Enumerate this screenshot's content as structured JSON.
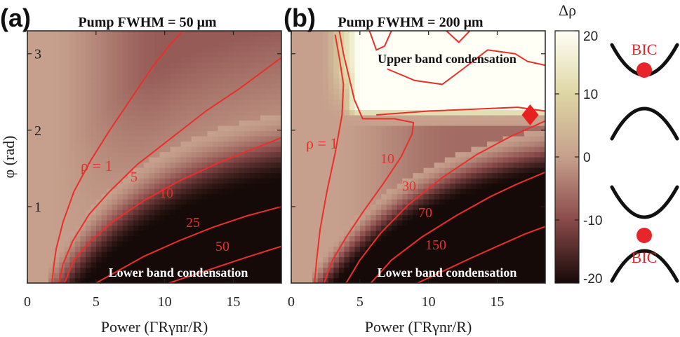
{
  "chart_data": [
    {
      "type": "heatmap",
      "panel_label": "(a)",
      "title": "Pump FWHM = 50 μm",
      "xlabel": "Power (ΓRγnr/R)",
      "ylabel": "φ (rad)",
      "xlim": [
        0,
        18.5
      ],
      "ylim": [
        0,
        3.3
      ],
      "xticks": [
        "0",
        "5",
        "10",
        "15"
      ],
      "yticks": [
        "1",
        "2",
        "3"
      ],
      "contours": [
        {
          "label": "ρ = 1",
          "level": 1,
          "points": [
            [
              1.8,
              0
            ],
            [
              1.9,
              0.2
            ],
            [
              2.1,
              0.45
            ],
            [
              2.6,
              0.8
            ],
            [
              3.4,
              1.2
            ],
            [
              4.6,
              1.6
            ],
            [
              6,
              2.0
            ],
            [
              7.5,
              2.4
            ],
            [
              9,
              2.8
            ],
            [
              10.3,
              3.1
            ],
            [
              11.3,
              3.3
            ]
          ]
        },
        {
          "label": "5",
          "level": 5,
          "points": [
            [
              2.3,
              0
            ],
            [
              2.6,
              0.25
            ],
            [
              3.3,
              0.55
            ],
            [
              4.5,
              0.9
            ],
            [
              6,
              1.2
            ],
            [
              8,
              1.55
            ],
            [
              10.5,
              1.9
            ],
            [
              13,
              2.25
            ],
            [
              15.5,
              2.55
            ],
            [
              18.5,
              2.95
            ]
          ]
        },
        {
          "label": "10",
          "level": 10,
          "points": [
            [
              2.7,
              0
            ],
            [
              3.4,
              0.3
            ],
            [
              4.6,
              0.55
            ],
            [
              6.2,
              0.8
            ],
            [
              8.5,
              1.08
            ],
            [
              11,
              1.33
            ],
            [
              14,
              1.58
            ],
            [
              16.5,
              1.76
            ],
            [
              18.5,
              1.9
            ]
          ]
        },
        {
          "label": "25",
          "level": 25,
          "points": [
            [
              5,
              0
            ],
            [
              6.5,
              0.15
            ],
            [
              8.5,
              0.35
            ],
            [
              11,
              0.55
            ],
            [
              13.5,
              0.73
            ],
            [
              16,
              0.88
            ],
            [
              18.5,
              1.0
            ]
          ]
        },
        {
          "label": "50",
          "level": 50,
          "points": [
            [
              10.3,
              0
            ],
            [
              12,
              0.1
            ],
            [
              14,
              0.22
            ],
            [
              16,
              0.34
            ],
            [
              18.5,
              0.48
            ]
          ]
        }
      ],
      "annotations": [
        "Lower band condensation"
      ]
    },
    {
      "type": "heatmap",
      "panel_label": "(b)",
      "title": "Pump FWHM = 200 μm",
      "xlabel": "Power (ΓRγnr/R)",
      "ylabel": "",
      "xlim": [
        0,
        18.5
      ],
      "ylim": [
        0,
        3.3
      ],
      "xticks": [
        "0",
        "5",
        "10",
        "15"
      ],
      "contours": [
        {
          "label": "ρ = 1",
          "level": 1,
          "points": [
            [
              1.7,
              0
            ],
            [
              1.85,
              0.3
            ],
            [
              2.1,
              0.7
            ],
            [
              2.6,
              1.2
            ],
            [
              3.2,
              1.7
            ],
            [
              3.7,
              2.2
            ],
            [
              3.8,
              2.6
            ],
            [
              3.5,
              2.95
            ],
            [
              3.2,
              3.25
            ]
          ]
        },
        {
          "label": "10",
          "level": 10,
          "points": [
            [
              2.4,
              0
            ],
            [
              3,
              0.3
            ],
            [
              4,
              0.6
            ],
            [
              5.3,
              0.95
            ],
            [
              6.7,
              1.3
            ],
            [
              8,
              1.65
            ],
            [
              8.8,
              1.95
            ],
            [
              8.9,
              2.1
            ],
            [
              7.5,
              2.15
            ],
            [
              5.2,
              2.15
            ],
            [
              4.6,
              2.4
            ],
            [
              4.2,
              2.7
            ],
            [
              3.8,
              3.0
            ],
            [
              3.5,
              3.3
            ]
          ]
        },
        {
          "label": "30",
          "level": 30,
          "points": [
            [
              4,
              0
            ],
            [
              5,
              0.3
            ],
            [
              6.5,
              0.65
            ],
            [
              8.5,
              1.02
            ],
            [
              11,
              1.38
            ],
            [
              13.5,
              1.68
            ],
            [
              16,
              1.92
            ],
            [
              18.5,
              2.12
            ]
          ]
        },
        {
          "label": "70",
          "level": 70,
          "points": [
            [
              5.8,
              0
            ],
            [
              7.3,
              0.3
            ],
            [
              9.5,
              0.6
            ],
            [
              12,
              0.88
            ],
            [
              14.5,
              1.13
            ],
            [
              16.5,
              1.3
            ],
            [
              18.5,
              1.45
            ]
          ]
        },
        {
          "label": "150",
          "level": 150,
          "points": [
            [
              9.2,
              0
            ],
            [
              11,
              0.15
            ],
            [
              13,
              0.32
            ],
            [
              15,
              0.48
            ],
            [
              17,
              0.64
            ],
            [
              18.5,
              0.74
            ]
          ]
        },
        {
          "label": "",
          "level": 70,
          "points": [
            [
              6.2,
              2.2
            ],
            [
              10,
              2.25
            ],
            [
              14,
              2.28
            ],
            [
              16.5,
              2.3
            ],
            [
              18.5,
              2.25
            ]
          ]
        },
        {
          "label": "",
          "level": 30,
          "points": [
            [
              7,
              2.8
            ],
            [
              9,
              2.65
            ],
            [
              11,
              2.6
            ],
            [
              12.5,
              2.8
            ],
            [
              14.3,
              3.05
            ],
            [
              16.3,
              3.0
            ],
            [
              17.2,
              2.9
            ],
            [
              18.5,
              2.85
            ]
          ]
        },
        {
          "label": "",
          "level": 10,
          "points": [
            [
              5.7,
              3.3
            ],
            [
              6.2,
              3.05
            ],
            [
              6.8,
              3.1
            ],
            [
              7.3,
              3.3
            ]
          ]
        },
        {
          "label": "",
          "level": 10,
          "points": [
            [
              11.3,
              3.3
            ],
            [
              12.2,
              3.15
            ],
            [
              13,
              3.3
            ]
          ]
        }
      ],
      "marker": {
        "shape": "diamond",
        "x": 17.4,
        "y": 2.2
      },
      "annotations": [
        "Upper band condensation",
        "Lower band condensation"
      ]
    }
  ],
  "colorbar": {
    "label": "Δρ",
    "min": -20,
    "max": 20,
    "ticks": [
      "20",
      "10",
      "0",
      "-10",
      "-20"
    ]
  },
  "schematic": {
    "top_label": "BIC",
    "bottom_label": "BIC"
  },
  "colors": {
    "contour": "#e8302a",
    "marker": "#e82020",
    "bic_dot": "#e8252a",
    "base_tan": "#c6a08c"
  }
}
